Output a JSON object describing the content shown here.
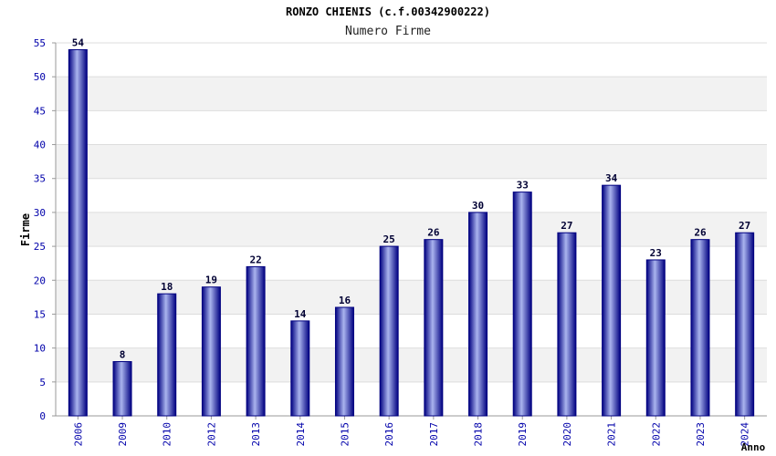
{
  "chart_data": {
    "type": "bar",
    "title": "RONZO CHIENIS (c.f.00342900222)",
    "subtitle": "Numero Firme",
    "xlabel": "Anno",
    "ylabel": "Firme",
    "categories": [
      "2006",
      "2009",
      "2010",
      "2012",
      "2013",
      "2014",
      "2015",
      "2016",
      "2017",
      "2018",
      "2019",
      "2020",
      "2021",
      "2022",
      "2023",
      "2024"
    ],
    "values": [
      54,
      8,
      18,
      19,
      22,
      14,
      16,
      25,
      26,
      30,
      33,
      27,
      34,
      23,
      26,
      27
    ],
    "ylim": [
      0,
      55
    ],
    "yticks": [
      0,
      5,
      10,
      15,
      20,
      25,
      30,
      35,
      40,
      45,
      50,
      55
    ],
    "grid": true,
    "legend": "none",
    "colors": {
      "bar_dark": "#000080",
      "bar_light": "#aab4ee",
      "band": "#f2f2f2",
      "grid": "#dddddd",
      "tick_text": "#0000aa"
    }
  }
}
